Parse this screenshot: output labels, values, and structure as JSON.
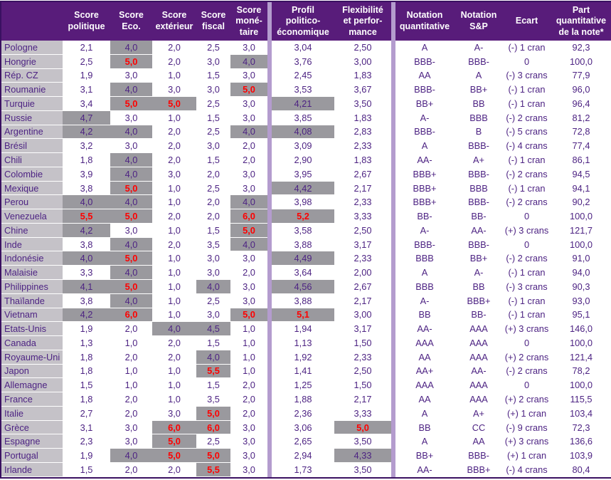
{
  "colors": {
    "header_bg": "#581c7a",
    "separator_bar": "#b49cce",
    "country_column_bg": "#c5c2c8",
    "highlight_cell_bg": "#9a999e",
    "body_text": "#4d2383",
    "alert_text": "#fe0000",
    "outer_border": "#3a1161"
  },
  "highlight_rules": {
    "gray_background_min_value": 4.0,
    "red_text_min_value": 5.0
  },
  "table": {
    "columns": [
      {
        "key": "country",
        "label": ""
      },
      {
        "key": "score_politique",
        "label": "Score\npolitique"
      },
      {
        "key": "score_eco",
        "label": "Score\nEco."
      },
      {
        "key": "score_exterieur",
        "label": "Score\nextérieur"
      },
      {
        "key": "score_fiscal",
        "label": "Score\nfiscal"
      },
      {
        "key": "score_monetaire",
        "label": "Score\nmoné-\ntaire"
      },
      {
        "key": "profil",
        "label": "Profil\npolitico-\néconomique"
      },
      {
        "key": "flexibilite",
        "label": "Flexibilité\net perfor-\nmance"
      },
      {
        "key": "notation_quantitative",
        "label": "Notation\nquantitative"
      },
      {
        "key": "notation_sp",
        "label": "Notation\nS&P"
      },
      {
        "key": "ecart",
        "label": "Ecart"
      },
      {
        "key": "part",
        "label": "Part\nquantitative\nde la note*"
      }
    ],
    "rows": [
      {
        "country": "Pologne",
        "scores": [
          "2,1",
          "4,0",
          "2,0",
          "2,5",
          "3,0"
        ],
        "profil": "3,04",
        "flexibilite": "2,50",
        "notation_quantitative": "A",
        "notation_sp": "A-",
        "ecart": "(-) 1 cran",
        "part": "92,3"
      },
      {
        "country": "Hongrie",
        "scores": [
          "2,5",
          "5,0",
          "2,0",
          "3,0",
          "4,0"
        ],
        "profil": "3,76",
        "flexibilite": "3,00",
        "notation_quantitative": "BBB-",
        "notation_sp": "BBB-",
        "ecart": "0",
        "part": "100,0"
      },
      {
        "country": "Rép. CZ",
        "scores": [
          "1,9",
          "3,0",
          "1,0",
          "1,5",
          "3,0"
        ],
        "profil": "2,45",
        "flexibilite": "1,83",
        "notation_quantitative": "AA",
        "notation_sp": "A",
        "ecart": "(-) 3 crans",
        "part": "77,9"
      },
      {
        "country": "Roumanie",
        "scores": [
          "3,1",
          "4,0",
          "3,0",
          "3,0",
          "5,0"
        ],
        "profil": "3,53",
        "flexibilite": "3,67",
        "notation_quantitative": "BBB-",
        "notation_sp": "BB+",
        "ecart": "(-) 1 cran",
        "part": "96,0"
      },
      {
        "country": "Turquie",
        "scores": [
          "3,4",
          "5,0",
          "5,0",
          "2,5",
          "3,0"
        ],
        "profil": "4,21",
        "flexibilite": "3,50",
        "notation_quantitative": "BB+",
        "notation_sp": "BB",
        "ecart": "(-) 1 cran",
        "part": "96,4"
      },
      {
        "country": "Russie",
        "scores": [
          "4,7",
          "3,0",
          "1,0",
          "1,5",
          "3,0"
        ],
        "profil": "3,85",
        "flexibilite": "1,83",
        "notation_quantitative": "A-",
        "notation_sp": "BBB",
        "ecart": "(-) 2 crans",
        "part": "81,2"
      },
      {
        "country": "Argentine",
        "scores": [
          "4,2",
          "4,0",
          "2,0",
          "2,5",
          "4,0"
        ],
        "profil": "4,08",
        "flexibilite": "2,83",
        "notation_quantitative": "BBB-",
        "notation_sp": "B",
        "ecart": "(-) 5 crans",
        "part": "72,8"
      },
      {
        "country": "Brésil",
        "scores": [
          "3,2",
          "3,0",
          "2,0",
          "3,0",
          "2,0"
        ],
        "profil": "3,09",
        "flexibilite": "2,33",
        "notation_quantitative": "A",
        "notation_sp": "BBB-",
        "ecart": "(-) 4 crans",
        "part": "77,4"
      },
      {
        "country": "Chili",
        "scores": [
          "1,8",
          "4,0",
          "2,0",
          "1,5",
          "2,0"
        ],
        "profil": "2,90",
        "flexibilite": "1,83",
        "notation_quantitative": "AA-",
        "notation_sp": "A+",
        "ecart": "(-) 1 cran",
        "part": "86,1"
      },
      {
        "country": "Colombie",
        "scores": [
          "3,9",
          "4,0",
          "3,0",
          "2,0",
          "3,0"
        ],
        "profil": "3,95",
        "flexibilite": "2,67",
        "notation_quantitative": "BBB+",
        "notation_sp": "BBB-",
        "ecart": "(-) 2 crans",
        "part": "94,5"
      },
      {
        "country": "Mexique",
        "scores": [
          "3,8",
          "5,0",
          "1,0",
          "2,5",
          "3,0"
        ],
        "profil": "4,42",
        "flexibilite": "2,17",
        "notation_quantitative": "BBB+",
        "notation_sp": "BBB",
        "ecart": "(-) 1 cran",
        "part": "94,1"
      },
      {
        "country": "Perou",
        "scores": [
          "4,0",
          "4,0",
          "1,0",
          "2,0",
          "4,0"
        ],
        "profil": "3,98",
        "flexibilite": "2,33",
        "notation_quantitative": "BBB+",
        "notation_sp": "BBB-",
        "ecart": "(-) 2 crans",
        "part": "90,2"
      },
      {
        "country": "Venezuela",
        "scores": [
          "5,5",
          "5,0",
          "2,0",
          "2,0",
          "6,0"
        ],
        "profil": "5,2",
        "flexibilite": "3,33",
        "notation_quantitative": "BB-",
        "notation_sp": "BB-",
        "ecart": "0",
        "part": "100,0"
      },
      {
        "country": "Chine",
        "scores": [
          "4,2",
          "3,0",
          "1,0",
          "1,5",
          "5,0"
        ],
        "profil": "3,58",
        "flexibilite": "2,50",
        "notation_quantitative": "A-",
        "notation_sp": "AA-",
        "ecart": "(+) 3 crans",
        "part": "121,7"
      },
      {
        "country": "Inde",
        "scores": [
          "3,8",
          "4,0",
          "2,0",
          "3,5",
          "4,0"
        ],
        "profil": "3,88",
        "flexibilite": "3,17",
        "notation_quantitative": "BBB-",
        "notation_sp": "BBB-",
        "ecart": "0",
        "part": "100,0"
      },
      {
        "country": "Indonésie",
        "scores": [
          "4,0",
          "5,0",
          "1,0",
          "3,0",
          "3,0"
        ],
        "profil": "4,49",
        "flexibilite": "2,33",
        "notation_quantitative": "BBB",
        "notation_sp": "BB+",
        "ecart": "(-) 2 crans",
        "part": "91,0"
      },
      {
        "country": "Malaisie",
        "scores": [
          "3,3",
          "4,0",
          "1,0",
          "3,0",
          "2,0"
        ],
        "profil": "3,64",
        "flexibilite": "2,00",
        "notation_quantitative": "A",
        "notation_sp": "A-",
        "ecart": "(-) 1 cran",
        "part": "94,0"
      },
      {
        "country": "Philippines",
        "scores": [
          "4,1",
          "5,0",
          "1,0",
          "4,0",
          "3,0"
        ],
        "profil": "4,56",
        "flexibilite": "2,67",
        "notation_quantitative": "BBB",
        "notation_sp": "BB",
        "ecart": "(-) 3 crans",
        "part": "90,3"
      },
      {
        "country": "Thaïlande",
        "scores": [
          "3,8",
          "4,0",
          "1,0",
          "2,5",
          "3,0"
        ],
        "profil": "3,88",
        "flexibilite": "2,17",
        "notation_quantitative": "A-",
        "notation_sp": "BBB+",
        "ecart": "(-) 1 cran",
        "part": "93,0"
      },
      {
        "country": "Vietnam",
        "scores": [
          "4,2",
          "6,0",
          "1,0",
          "3,0",
          "5,0"
        ],
        "profil": "5,1",
        "flexibilite": "3,00",
        "notation_quantitative": "BB",
        "notation_sp": "BB-",
        "ecart": "(-) 1 cran",
        "part": "95,1"
      },
      {
        "country": "Etats-Unis",
        "scores": [
          "1,9",
          "2,0",
          "4,0",
          "4,5",
          "1,0"
        ],
        "profil": "1,94",
        "flexibilite": "3,17",
        "notation_quantitative": "AA-",
        "notation_sp": "AAA",
        "ecart": "(+) 3 crans",
        "part": "146,0"
      },
      {
        "country": "Canada",
        "scores": [
          "1,3",
          "1,0",
          "2,0",
          "1,5",
          "1,0"
        ],
        "profil": "1,13",
        "flexibilite": "1,50",
        "notation_quantitative": "AAA",
        "notation_sp": "AAA",
        "ecart": "0",
        "part": "100,0"
      },
      {
        "country": "Royaume-Uni",
        "scores": [
          "1,8",
          "2,0",
          "2,0",
          "4,0",
          "1,0"
        ],
        "profil": "1,92",
        "flexibilite": "2,33",
        "notation_quantitative": "AA",
        "notation_sp": "AAA",
        "ecart": "(+) 2 crans",
        "part": "121,4"
      },
      {
        "country": "Japon",
        "scores": [
          "1,8",
          "1,0",
          "1,0",
          "5,5",
          "1,0"
        ],
        "profil": "1,41",
        "flexibilite": "2,50",
        "notation_quantitative": "AA+",
        "notation_sp": "AA-",
        "ecart": "(-) 2 crans",
        "part": "78,2"
      },
      {
        "country": "Allemagne",
        "scores": [
          "1,5",
          "1,0",
          "1,0",
          "1,5",
          "2,0"
        ],
        "profil": "1,25",
        "flexibilite": "1,50",
        "notation_quantitative": "AAA",
        "notation_sp": "AAA",
        "ecart": "0",
        "part": "100,0"
      },
      {
        "country": "France",
        "scores": [
          "1,8",
          "2,0",
          "1,0",
          "3,5",
          "2,0"
        ],
        "profil": "1,88",
        "flexibilite": "2,17",
        "notation_quantitative": "AA",
        "notation_sp": "AAA",
        "ecart": "(+) 2 crans",
        "part": "115,5"
      },
      {
        "country": "Italie",
        "scores": [
          "2,7",
          "2,0",
          "3,0",
          "5,0",
          "2,0"
        ],
        "profil": "2,36",
        "flexibilite": "3,33",
        "notation_quantitative": "A",
        "notation_sp": "A+",
        "ecart": "(+) 1 cran",
        "part": "103,4"
      },
      {
        "country": "Grèce",
        "scores": [
          "3,1",
          "3,0",
          "6,0",
          "6,0",
          "3,0"
        ],
        "profil": "3,06",
        "flexibilite": "5,0",
        "notation_quantitative": "BB",
        "notation_sp": "CC",
        "ecart": "(-) 9 crans",
        "part": "72,3"
      },
      {
        "country": "Espagne",
        "scores": [
          "2,3",
          "3,0",
          "5,0",
          "2,5",
          "3,0"
        ],
        "profil": "2,65",
        "flexibilite": "3,50",
        "notation_quantitative": "A",
        "notation_sp": "AA",
        "ecart": "(+) 3 crans",
        "part": "136,6"
      },
      {
        "country": "Portugal",
        "scores": [
          "1,9",
          "4,0",
          "5,0",
          "5,0",
          "3,0"
        ],
        "profil": "2,94",
        "flexibilite": "4,33",
        "notation_quantitative": "BB+",
        "notation_sp": "BBB-",
        "ecart": "(+) 1 cran",
        "part": "103,9"
      },
      {
        "country": "Irlande",
        "scores": [
          "1,5",
          "2,0",
          "2,0",
          "5,5",
          "3,0"
        ],
        "profil": "1,73",
        "flexibilite": "3,50",
        "notation_quantitative": "AA-",
        "notation_sp": "BBB+",
        "ecart": "(-) 4 crans",
        "part": "80,4"
      }
    ]
  }
}
